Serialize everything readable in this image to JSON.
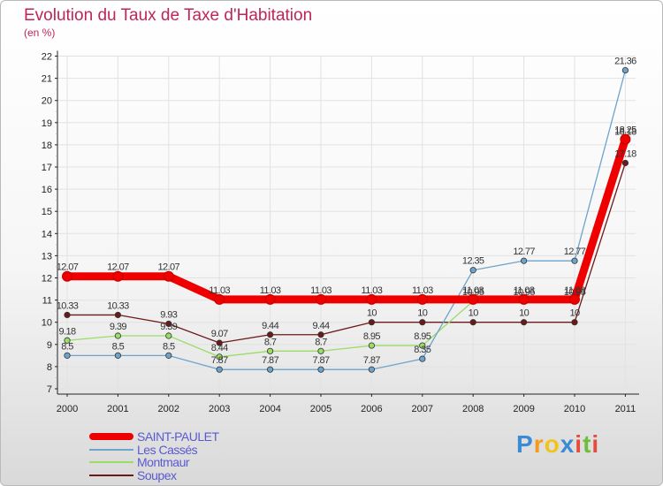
{
  "chart_data": {
    "type": "line",
    "title": "Evolution du Taux de Taxe d'Habitation",
    "unit": "(en %)",
    "xlabel": "",
    "ylabel": "",
    "ylim": [
      7,
      22
    ],
    "yticks": [
      "7",
      "8",
      "9",
      "10",
      "11",
      "12",
      "13",
      "14",
      "15",
      "16",
      "17",
      "18",
      "19",
      "20",
      "21",
      "22"
    ],
    "categories": [
      "2000",
      "2001",
      "2002",
      "2003",
      "2004",
      "2005",
      "2006",
      "2007",
      "2008",
      "2009",
      "2010",
      "2011"
    ],
    "series": [
      {
        "name": "Soupex",
        "color": "#6b1a1a",
        "values": [
          10.33,
          10.33,
          9.93,
          9.07,
          9.44,
          9.44,
          10,
          10,
          10,
          10,
          10,
          17.18
        ],
        "labels": [
          "10.33",
          "10.33",
          "9.93",
          "9.07",
          "9.44",
          "9.44",
          "10",
          "10",
          "10",
          "10",
          "10",
          "17.18"
        ]
      },
      {
        "name": "Montmaur",
        "color": "#99dd66",
        "values": [
          9.18,
          9.39,
          9.39,
          8.44,
          8.7,
          8.7,
          8.95,
          8.95,
          10.95,
          10.95,
          10.95,
          18.18
        ],
        "labels": [
          "9.18",
          "9.39",
          "9.39",
          "8.44",
          "8.7",
          "8.7",
          "8.95",
          "8.95",
          "10.95",
          "10.95",
          "10.95",
          "18.18"
        ]
      },
      {
        "name": "Les Cassés",
        "color": "#6ea3cc",
        "values": [
          8.5,
          8.5,
          8.5,
          7.87,
          7.87,
          7.87,
          7.87,
          8.35,
          12.35,
          12.77,
          12.77,
          21.36
        ],
        "labels": [
          "8.5",
          "8.5",
          "8.5",
          "7.87",
          "7.87",
          "7.87",
          "7.87",
          "8.35",
          "12.35",
          "12.77",
          "12.77",
          "21.36"
        ]
      },
      {
        "name": "SAINT-PAULET",
        "color": "#ee0000",
        "values": [
          12.07,
          12.07,
          12.07,
          11.03,
          11.03,
          11.03,
          11.03,
          11.03,
          11.03,
          11.03,
          11.03,
          18.25
        ],
        "labels": [
          "12.07",
          "12.07",
          "12.07",
          "11.03",
          "11.03",
          "11.03",
          "11.03",
          "11.03",
          "11.03",
          "11.03",
          "11.03",
          "18.25"
        ]
      }
    ]
  },
  "legend": [
    {
      "label": "SAINT-PAULET",
      "color": "#ee0000"
    },
    {
      "label": "Les Cassés",
      "color": "#6ea3cc"
    },
    {
      "label": "Montmaur",
      "color": "#99dd66"
    },
    {
      "label": "Soupex",
      "color": "#6b1a1a"
    }
  ],
  "logo": {
    "letters": [
      "P",
      "r",
      "o",
      "x",
      "i",
      "t",
      "i"
    ],
    "colors": [
      "#3a8ad6",
      "#f39a1f",
      "#f0c419",
      "#3a8ad6",
      "#e64b3c",
      "#6cbf3c",
      "#e64b3c"
    ]
  }
}
